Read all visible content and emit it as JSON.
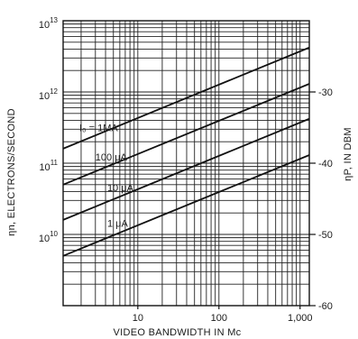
{
  "chart_data": {
    "type": "line",
    "x_scale": "log",
    "y_scale": "log",
    "xlim": [
      1.2,
      1300
    ],
    "ylim": [
      1000000000.0,
      10000000000000.0
    ],
    "grid": true,
    "xlabel": "VIDEO BANDWIDTH IN Mc",
    "ylabel": "ηn, ELECTRONS/SECOND",
    "y2label": "ηP, IN DBM",
    "x_ticks": [
      {
        "value": 10,
        "label": "10"
      },
      {
        "value": 100,
        "label": "100"
      },
      {
        "value": 1000,
        "label": "1,000"
      }
    ],
    "y_ticks": [
      {
        "value": 10000000000000.0,
        "base": "10",
        "exp": "13"
      },
      {
        "value": 1000000000000.0,
        "base": "10",
        "exp": "12"
      },
      {
        "value": 100000000000.0,
        "base": "10",
        "exp": "11"
      },
      {
        "value": 10000000000.0,
        "base": "10",
        "exp": "10"
      }
    ],
    "y2_ticks": [
      {
        "value": -30,
        "label": "-30"
      },
      {
        "value": -40,
        "label": "-40"
      },
      {
        "value": -50,
        "label": "-50"
      },
      {
        "value": -60,
        "label": "-60"
      }
    ],
    "series": [
      {
        "name": "I₀ = 1MA",
        "x": [
          1.2,
          1300
        ],
        "y": [
          160000000000.0,
          4200000000000.0
        ],
        "label_at_x": 1.9
      },
      {
        "name": "100 μA",
        "x": [
          1.2,
          1300
        ],
        "y": [
          50000000000.0,
          1300000000000.0
        ],
        "label_at_x": 3.0
      },
      {
        "name": "10 μA",
        "x": [
          1.2,
          1300
        ],
        "y": [
          16000000000.0,
          420000000000.0
        ],
        "label_at_x": 4.2
      },
      {
        "name": "1 μA",
        "x": [
          1.2,
          1300
        ],
        "y": [
          5000000000.0,
          130000000000.0
        ],
        "label_at_x": 4.2
      }
    ]
  }
}
